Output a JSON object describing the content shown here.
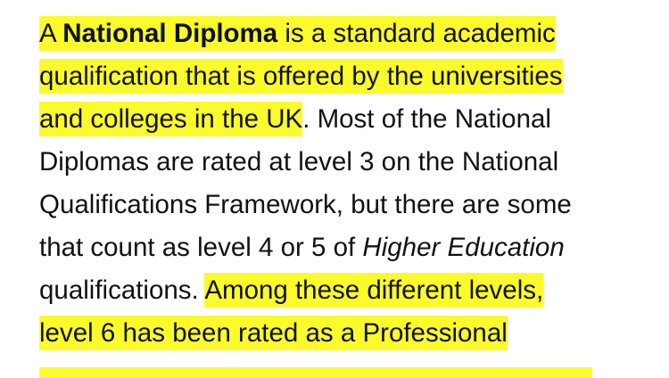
{
  "highlight_color": "#fbfb2c",
  "paragraph": {
    "lines": [
      [
        {
          "t": "A "
        },
        {
          "t": "National Diploma"
        },
        {
          "t": " is a standard academic"
        }
      ],
      [
        {
          "t": "qualification that is offered by the universities"
        }
      ],
      [
        {
          "t": "and colleges in the UK"
        },
        {
          "t": ". Most of the National"
        }
      ],
      [
        {
          "t": "Diplomas are rated at level 3 on the National"
        }
      ],
      [
        {
          "t": "Qualifications Framework, but there are some"
        }
      ],
      [
        {
          "t": "that count as level 4 or 5 of "
        },
        {
          "t": "Higher Education"
        }
      ],
      [
        {
          "t": "qualifications. "
        },
        {
          "t": "Among these different levels,"
        }
      ],
      [
        {
          "t": "level 6 has been rated as a Professional"
        }
      ]
    ]
  }
}
